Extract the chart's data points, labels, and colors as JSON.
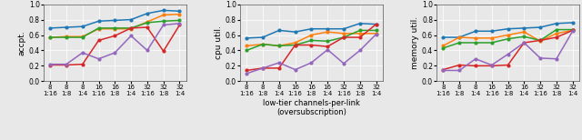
{
  "x_labels": [
    "8\n1:16",
    "8\n1:8",
    "8\n1:4",
    "16\n1:16",
    "16\n1:8",
    "16\n1:4",
    "32\n1:16",
    "32\n1:8",
    "32\n1:4"
  ],
  "colors": [
    "#1f77b4",
    "#ff7f0e",
    "#2ca02c",
    "#d62728",
    "#9467bd"
  ],
  "acct": [
    [
      0.69,
      0.7,
      0.71,
      0.78,
      0.79,
      0.8,
      0.88,
      0.92,
      0.91
    ],
    [
      0.57,
      0.58,
      0.58,
      0.68,
      0.68,
      0.68,
      0.77,
      0.86,
      0.87
    ],
    [
      0.57,
      0.57,
      0.57,
      0.69,
      0.69,
      0.69,
      0.76,
      0.78,
      0.79
    ],
    [
      0.21,
      0.21,
      0.22,
      0.53,
      0.59,
      0.69,
      0.7,
      0.39,
      0.73
    ],
    [
      0.22,
      0.22,
      0.37,
      0.29,
      0.37,
      0.59,
      0.4,
      0.73,
      0.75
    ]
  ],
  "cpu": [
    [
      0.56,
      0.57,
      0.66,
      0.64,
      0.68,
      0.68,
      0.68,
      0.75,
      0.74
    ],
    [
      0.46,
      0.48,
      0.46,
      0.5,
      0.6,
      0.64,
      0.62,
      0.62,
      0.62
    ],
    [
      0.4,
      0.48,
      0.46,
      0.47,
      0.53,
      0.52,
      0.57,
      0.66,
      0.66
    ],
    [
      0.14,
      0.17,
      0.17,
      0.47,
      0.47,
      0.45,
      0.57,
      0.57,
      0.74
    ],
    [
      0.1,
      0.17,
      0.24,
      0.15,
      0.24,
      0.41,
      0.23,
      0.4,
      0.61
    ]
  ],
  "mem": [
    [
      0.57,
      0.57,
      0.65,
      0.65,
      0.68,
      0.69,
      0.7,
      0.75,
      0.76
    ],
    [
      0.46,
      0.57,
      0.56,
      0.56,
      0.6,
      0.64,
      0.52,
      0.62,
      0.66
    ],
    [
      0.43,
      0.5,
      0.5,
      0.5,
      0.55,
      0.58,
      0.53,
      0.67,
      0.67
    ],
    [
      0.15,
      0.21,
      0.2,
      0.2,
      0.21,
      0.5,
      0.53,
      0.57,
      0.66
    ],
    [
      0.14,
      0.14,
      0.29,
      0.21,
      0.35,
      0.5,
      0.3,
      0.29,
      0.65
    ]
  ],
  "ylim": [
    0.0,
    1.0
  ],
  "yticks": [
    0.0,
    0.2,
    0.4,
    0.6,
    0.8,
    1.0
  ],
  "ylabel_acct": "accpt.",
  "ylabel_cpu": "cpu util.",
  "ylabel_mem": "memory util.",
  "xlabel": "low-tier channels-per-link\n(oversubscription)",
  "bg_color": "#e8e8e8"
}
